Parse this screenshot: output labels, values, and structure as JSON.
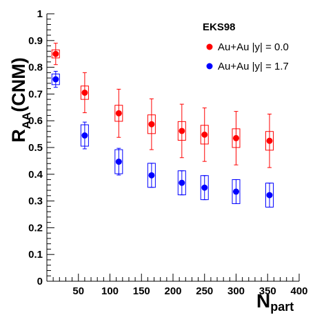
{
  "chart_data": {
    "type": "scatter",
    "title": "",
    "xlabel_main": "N",
    "xlabel_sub": "part",
    "ylabel_main": "R",
    "ylabel_sub": "AA",
    "ylabel_suffix": "(CNM)",
    "xlim": [
      0,
      400
    ],
    "ylim": [
      0,
      1
    ],
    "x_ticks": [
      "50",
      "100",
      "150",
      "200",
      "250",
      "300",
      "350",
      "400"
    ],
    "y_ticks": [
      "0",
      "0.1",
      "0.2",
      "0.3",
      "0.4",
      "0.5",
      "0.6",
      "0.7",
      "0.8",
      "0.9",
      "1"
    ],
    "grid": false,
    "legend_title": "EKS98",
    "legend_position": "top-right",
    "series": [
      {
        "name": "Au+Au |y| = 0.0",
        "color": "#ff0000",
        "x": [
          14,
          60,
          114,
          166,
          214,
          250,
          300,
          353
        ],
        "y": [
          0.85,
          0.705,
          0.628,
          0.587,
          0.562,
          0.548,
          0.535,
          0.525
        ],
        "err": [
          0.04,
          0.075,
          0.09,
          0.095,
          0.1,
          0.1,
          0.1,
          0.1
        ],
        "sys": [
          0.015,
          0.025,
          0.03,
          0.035,
          0.035,
          0.035,
          0.035,
          0.035
        ]
      },
      {
        "name": "Au+Au |y| = 1.7",
        "color": "#0000ff",
        "x": [
          14,
          60,
          114,
          166,
          214,
          250,
          300,
          353
        ],
        "y": [
          0.755,
          0.545,
          0.447,
          0.396,
          0.368,
          0.35,
          0.335,
          0.322
        ],
        "err": [
          0.03,
          0.05,
          0.05,
          0.045,
          0.045,
          0.045,
          0.045,
          0.045
        ],
        "sys": [
          0.02,
          0.04,
          0.045,
          0.045,
          0.045,
          0.045,
          0.045,
          0.045
        ]
      }
    ]
  }
}
